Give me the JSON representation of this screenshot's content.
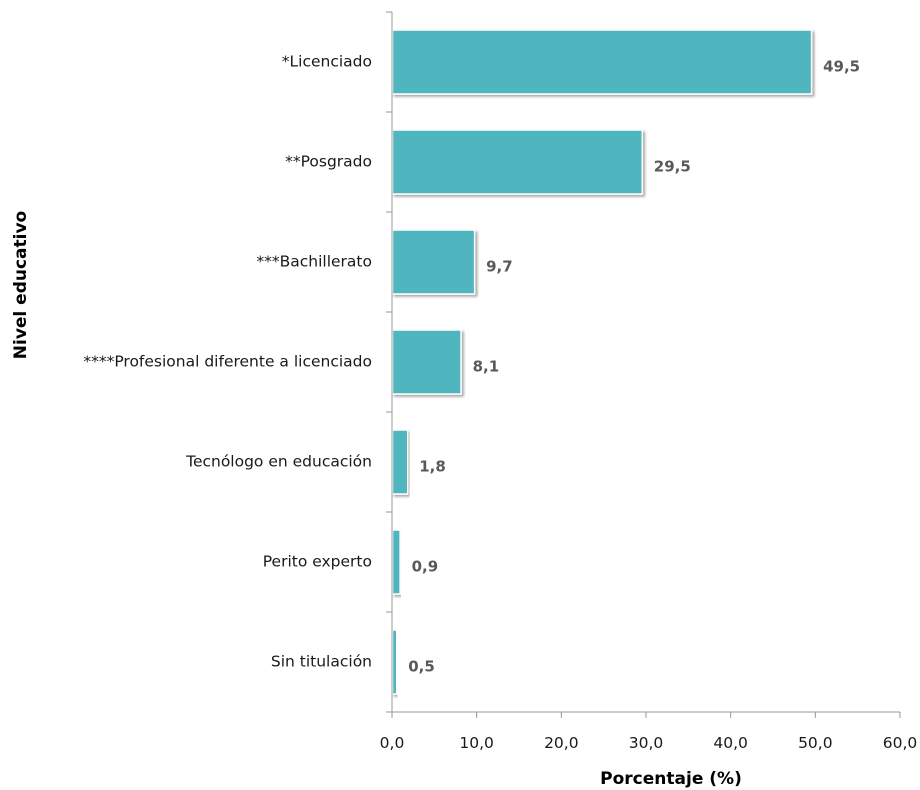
{
  "chart_data": {
    "type": "bar",
    "orientation": "horizontal",
    "categories": [
      "*Licenciado",
      "**Posgrado",
      "***Bachillerato",
      "****Profesional diferente a licenciado",
      "Tecnólogo en educación",
      "Perito experto",
      "Sin titulación"
    ],
    "values": [
      49.5,
      29.5,
      9.7,
      8.1,
      1.8,
      0.9,
      0.5
    ],
    "value_labels": [
      "49,5",
      "29,5",
      "9,7",
      "8,1",
      "1,8",
      "0,9",
      "0,5"
    ],
    "xlabel": "Porcentaje (%)",
    "ylabel": "Nivel educativo",
    "xlim": [
      0,
      60
    ],
    "xticks": [
      0,
      10,
      20,
      30,
      40,
      50,
      60
    ],
    "xtick_labels": [
      "0,0",
      "10,0",
      "20,0",
      "30,0",
      "40,0",
      "50,0",
      "60,0"
    ],
    "grid": false,
    "legend": "none",
    "bar_color": "#4FB5BE"
  }
}
